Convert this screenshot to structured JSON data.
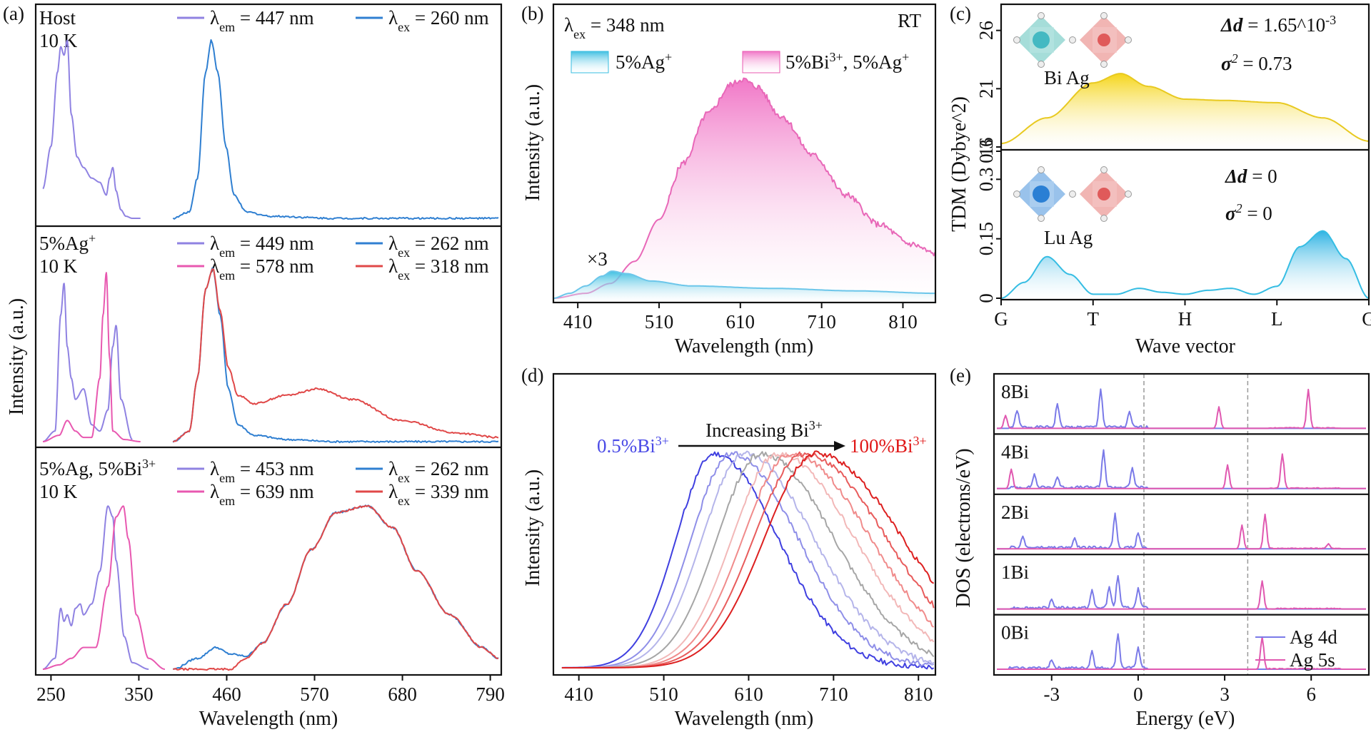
{
  "colors": {
    "purple": "#8f82e2",
    "blue": "#2f7fd1",
    "pink": "#e858b0",
    "red": "#e04848",
    "yellow": "#f2d328",
    "cyan": "#37bde0",
    "lightblue": "#7fd0ef",
    "gray": "#a6a6a6"
  },
  "panels": {
    "a": {
      "label": "(a)",
      "ylabel": "Intensity (a.u.)",
      "xlabel": "Wavelength (nm)",
      "xticks": [
        "250",
        "350",
        "460",
        "570",
        "680",
        "790"
      ],
      "sub": [
        {
          "name": "Host",
          "temp": "10 K",
          "legend": [
            {
              "sym": "λ",
              "sub": "em",
              "text": " = 447 nm",
              "color": "#8f82e2"
            },
            {
              "sym": "λ",
              "sub": "ex",
              "text": " = 260 nm",
              "color": "#2f7fd1"
            }
          ]
        },
        {
          "name": "5%Ag",
          "name_sup": "+",
          "temp": "10 K",
          "legend": [
            {
              "sym": "λ",
              "sub": "em",
              "text": " = 449 nm",
              "color": "#8f82e2"
            },
            {
              "sym": "λ",
              "sub": "ex",
              "text": " = 262 nm",
              "color": "#2f7fd1"
            },
            {
              "sym": "λ",
              "sub": "em",
              "text": " = 578 nm",
              "color": "#e858b0"
            },
            {
              "sym": "λ",
              "sub": "ex",
              "text": " = 318 nm",
              "color": "#e04848"
            }
          ]
        },
        {
          "name": "5%Ag, 5%Bi",
          "name_sup": "3+",
          "temp": "10 K",
          "legend": [
            {
              "sym": "λ",
              "sub": "em",
              "text": " = 453 nm",
              "color": "#8f82e2"
            },
            {
              "sym": "λ",
              "sub": "ex",
              "text": " = 262 nm",
              "color": "#2f7fd1"
            },
            {
              "sym": "λ",
              "sub": "em",
              "text": " = 639 nm",
              "color": "#e858b0"
            },
            {
              "sym": "λ",
              "sub": "ex",
              "text": " = 339 nm",
              "color": "#e04848"
            }
          ]
        }
      ]
    },
    "b": {
      "label": "(b)",
      "ylabel": "Intensity (a.u.)",
      "xlabel": "Wavelength (nm)",
      "xticks": [
        "410",
        "510",
        "610",
        "710",
        "810"
      ],
      "excitation": "λ",
      "excitation_sub": "ex",
      "excitation_text": " = 348 nm",
      "rt": "RT",
      "legend1": "5%Ag",
      "legend1_sup": "+",
      "legend2a": "5%Bi",
      "legend2a_sup": "3+",
      "legend2b": ", 5%Ag",
      "legend2b_sup": "+",
      "multiplier": "×3"
    },
    "c": {
      "label": "(c)",
      "ylabel": "TDM (Dybye^2)",
      "xlabel": "Wave vector",
      "xticks": [
        "G",
        "T",
        "H",
        "L",
        "G"
      ],
      "top_yticks": [
        "26",
        "21",
        "16"
      ],
      "bottom_yticks": [
        "0.3",
        "0.15",
        "0",
        "0.3"
      ],
      "top_atoms": "Bi Ag",
      "bottom_atoms": "Lu Ag",
      "top_dd_label": "Δd",
      "top_dd_value": " = 1.65^10",
      "top_dd_sup": "-3",
      "top_sigma": "σ",
      "top_sigma_sup": "2",
      "top_sigma_value": " = 0.73",
      "bottom_dd_label": "Δd",
      "bottom_dd_value": " = 0",
      "bottom_sigma": "σ",
      "bottom_sigma_sup": "2",
      "bottom_sigma_value": " = 0"
    },
    "d": {
      "label": "(d)",
      "ylabel": "Intensity (a.u.)",
      "xlabel": "Wavelength (nm)",
      "xticks": [
        "410",
        "510",
        "610",
        "710",
        "810"
      ],
      "arrow_label": "Increasing Bi",
      "arrow_label_sup": "3+",
      "left_label": "0.5%Bi",
      "left_label_sup": "3+",
      "right_label": "100%Bi",
      "right_label_sup": "3+"
    },
    "e": {
      "label": "(e)",
      "ylabel": "DOS (electrons/eV)",
      "xlabel": "Energy (eV)",
      "xticks": [
        "-3",
        "0",
        "3",
        "6"
      ],
      "rows": [
        "8Bi",
        "4Bi",
        "2Bi",
        "1Bi",
        "0Bi"
      ],
      "legend": [
        "Ag 4d",
        "Ag 5s"
      ]
    }
  },
  "chart_data": [
    {
      "panel": "a-top",
      "type": "line",
      "title": "Host 10 K",
      "xlim": [
        240,
        800
      ],
      "series": [
        {
          "name": "λem = 447 nm",
          "color": "#8f82e2",
          "x": [
            240,
            250,
            258,
            262,
            266,
            270,
            275,
            282,
            290,
            300,
            310,
            318,
            322,
            326,
            330,
            336,
            342,
            350,
            360
          ],
          "y": [
            0.15,
            0.35,
            0.7,
            0.82,
            0.78,
            0.85,
            0.5,
            0.3,
            0.25,
            0.2,
            0.18,
            0.12,
            0.2,
            0.25,
            0.14,
            0.05,
            0.02,
            0.01,
            0.01
          ]
        },
        {
          "name": "λex = 260 nm",
          "color": "#2f7fd1",
          "x": [
            400,
            420,
            430,
            440,
            447,
            455,
            465,
            475,
            490,
            520,
            600,
            800
          ],
          "y": [
            0.01,
            0.04,
            0.2,
            0.7,
            0.85,
            0.7,
            0.35,
            0.12,
            0.04,
            0.02,
            0.01,
            0.01
          ]
        }
      ]
    },
    {
      "panel": "a-middle",
      "type": "line",
      "title": "5%Ag+ 10 K",
      "xlim": [
        240,
        800
      ],
      "series": [
        {
          "name": "λem = 449 nm",
          "color": "#8f82e2",
          "x": [
            240,
            255,
            262,
            266,
            270,
            275,
            280,
            290,
            300,
            310,
            320,
            326,
            330,
            336,
            350
          ],
          "y": [
            0.0,
            0.05,
            0.6,
            0.75,
            0.45,
            0.3,
            0.2,
            0.25,
            0.08,
            0.05,
            0.15,
            0.45,
            0.55,
            0.2,
            0.01
          ]
        },
        {
          "name": "λem = 578 nm",
          "color": "#e858b0",
          "x": [
            240,
            260,
            270,
            280,
            290,
            300,
            310,
            314,
            318,
            322,
            326,
            340,
            360
          ],
          "y": [
            0.0,
            0.03,
            0.1,
            0.05,
            0.02,
            0.02,
            0.3,
            0.6,
            0.8,
            0.4,
            0.05,
            0.01,
            0.0
          ]
        },
        {
          "name": "λex = 262 nm",
          "color": "#2f7fd1",
          "x": [
            400,
            420,
            430,
            440,
            449,
            458,
            468,
            480,
            500,
            540,
            600,
            800
          ],
          "y": [
            0.0,
            0.05,
            0.3,
            0.72,
            0.82,
            0.6,
            0.25,
            0.08,
            0.03,
            0.01,
            0.0,
            0.0
          ]
        },
        {
          "name": "λex = 318 nm",
          "color": "#e04848",
          "x": [
            400,
            420,
            430,
            440,
            449,
            458,
            468,
            480,
            500,
            540,
            578,
            620,
            680,
            750,
            800
          ],
          "y": [
            0.0,
            0.05,
            0.3,
            0.72,
            0.82,
            0.62,
            0.35,
            0.22,
            0.18,
            0.22,
            0.25,
            0.2,
            0.1,
            0.04,
            0.02
          ]
        }
      ]
    },
    {
      "panel": "a-bottom",
      "type": "line",
      "title": "5%Ag, 5%Bi3+ 10 K",
      "xlim": [
        240,
        800
      ],
      "series": [
        {
          "name": "λem = 453 nm",
          "color": "#8f82e2",
          "x": [
            240,
            255,
            262,
            266,
            270,
            275,
            280,
            286,
            290,
            300,
            310,
            320,
            326,
            330,
            340,
            350,
            370
          ],
          "y": [
            0.0,
            0.05,
            0.28,
            0.22,
            0.25,
            0.2,
            0.28,
            0.3,
            0.25,
            0.3,
            0.45,
            0.75,
            0.7,
            0.5,
            0.15,
            0.03,
            0.0
          ]
        },
        {
          "name": "λem = 639 nm",
          "color": "#e858b0",
          "x": [
            240,
            260,
            275,
            290,
            305,
            320,
            330,
            339,
            345,
            355,
            370,
            390
          ],
          "y": [
            0.0,
            0.02,
            0.05,
            0.1,
            0.1,
            0.38,
            0.7,
            0.75,
            0.6,
            0.25,
            0.05,
            0.0
          ]
        },
        {
          "name": "λex = 262 nm",
          "color": "#2f7fd1",
          "x": [
            400,
            430,
            453,
            470,
            490,
            510,
            540,
            570,
            600,
            639,
            670,
            700,
            740,
            780,
            800
          ],
          "y": [
            0.0,
            0.05,
            0.1,
            0.07,
            0.06,
            0.12,
            0.3,
            0.55,
            0.72,
            0.75,
            0.65,
            0.45,
            0.25,
            0.1,
            0.05
          ]
        },
        {
          "name": "λex = 339 nm",
          "color": "#e04848",
          "x": [
            400,
            470,
            490,
            510,
            540,
            570,
            600,
            639,
            670,
            700,
            740,
            780,
            800
          ],
          "y": [
            0.0,
            0.0,
            0.05,
            0.12,
            0.3,
            0.55,
            0.72,
            0.75,
            0.65,
            0.45,
            0.25,
            0.1,
            0.05
          ]
        }
      ]
    },
    {
      "panel": "b",
      "type": "area",
      "title": "λex = 348 nm RT",
      "xlim": [
        380,
        850
      ],
      "series": [
        {
          "name": "5%Ag+",
          "color": "#37bde0",
          "x": [
            380,
            400,
            420,
            440,
            452,
            470,
            500,
            550,
            650,
            750,
            850
          ],
          "y": [
            0.0,
            0.02,
            0.05,
            0.09,
            0.11,
            0.1,
            0.07,
            0.05,
            0.04,
            0.03,
            0.02
          ]
        },
        {
          "name": "5%Bi3+, 5%Ag+",
          "color": "#e858b0",
          "x": [
            380,
            420,
            450,
            480,
            510,
            540,
            570,
            600,
            612,
            630,
            660,
            700,
            740,
            780,
            820,
            850
          ],
          "y": [
            0.0,
            0.02,
            0.06,
            0.15,
            0.32,
            0.55,
            0.75,
            0.87,
            0.89,
            0.86,
            0.74,
            0.58,
            0.42,
            0.3,
            0.22,
            0.18
          ]
        }
      ]
    },
    {
      "panel": "c-top",
      "type": "area",
      "ylim": [
        16,
        28
      ],
      "x": [
        "G",
        "T",
        "H",
        "L",
        "G"
      ],
      "series": [
        {
          "name": "Bi Ag",
          "color": "#f2d328",
          "x": [
            0,
            0.5,
            1.0,
            1.3,
            1.6,
            2.0,
            2.4,
            3.0,
            3.5,
            4.0
          ],
          "y": [
            16.3,
            18.5,
            21.5,
            22.3,
            21.2,
            20.1,
            20.0,
            19.8,
            18.5,
            16.5
          ]
        }
      ]
    },
    {
      "panel": "c-bottom",
      "type": "area",
      "ylim": [
        0,
        0.36
      ],
      "x": [
        "G",
        "T",
        "H",
        "L",
        "G"
      ],
      "series": [
        {
          "name": "Lu Ag",
          "color": "#37bde0",
          "x": [
            0,
            0.25,
            0.5,
            0.75,
            1.0,
            1.25,
            1.5,
            1.75,
            2.0,
            2.25,
            2.5,
            2.75,
            3.0,
            3.25,
            3.5,
            3.75,
            4.0
          ],
          "y": [
            0.0,
            0.04,
            0.105,
            0.06,
            0.01,
            0.01,
            0.025,
            0.015,
            0.01,
            0.02,
            0.025,
            0.01,
            0.03,
            0.13,
            0.17,
            0.1,
            0.0
          ]
        }
      ]
    },
    {
      "panel": "d",
      "type": "line",
      "xlim": [
        380,
        830
      ],
      "series": [
        {
          "name": "0.5%Bi3+",
          "color": "#4040e0",
          "peak": 570,
          "width": 78
        },
        {
          "name": "",
          "color": "#8f8fe8",
          "peak": 590,
          "width": 82
        },
        {
          "name": "",
          "color": "#b5b5ea",
          "peak": 605,
          "width": 86
        },
        {
          "name": "",
          "color": "#a6a6a6",
          "peak": 625,
          "width": 90
        },
        {
          "name": "",
          "color": "#f2b8b8",
          "peak": 645,
          "width": 94
        },
        {
          "name": "",
          "color": "#f08b8b",
          "peak": 660,
          "width": 98
        },
        {
          "name": "",
          "color": "#e85c5c",
          "peak": 675,
          "width": 102
        },
        {
          "name": "100%Bi3+",
          "color": "#dd2020",
          "peak": 690,
          "width": 106
        }
      ]
    },
    {
      "panel": "e",
      "type": "line",
      "xlim": [
        -5,
        8
      ],
      "vlines": [
        0.2,
        3.8
      ],
      "rows": [
        {
          "name": "8Bi",
          "ag4d": [
            [
              -4.2,
              0.4
            ],
            [
              -2.8,
              0.55
            ],
            [
              -1.3,
              0.9
            ],
            [
              -0.3,
              0.35
            ]
          ],
          "ag5s": [
            [
              -4.6,
              0.3
            ],
            [
              2.8,
              0.5
            ],
            [
              5.9,
              0.9
            ]
          ]
        },
        {
          "name": "4Bi",
          "ag4d": [
            [
              -3.6,
              0.3
            ],
            [
              -2.8,
              0.25
            ],
            [
              -1.2,
              0.85
            ],
            [
              -0.2,
              0.45
            ]
          ],
          "ag5s": [
            [
              -4.4,
              0.45
            ],
            [
              3.1,
              0.55
            ],
            [
              5.0,
              0.8
            ]
          ]
        },
        {
          "name": "2Bi",
          "ag4d": [
            [
              -4.0,
              0.25
            ],
            [
              -2.2,
              0.2
            ],
            [
              -0.8,
              0.8
            ],
            [
              0.0,
              0.35
            ]
          ],
          "ag5s": [
            [
              3.6,
              0.55
            ],
            [
              4.4,
              0.8
            ],
            [
              6.6,
              0.1
            ]
          ]
        },
        {
          "name": "1Bi",
          "ag4d": [
            [
              -3.0,
              0.2
            ],
            [
              -1.6,
              0.4
            ],
            [
              -1.0,
              0.5
            ],
            [
              -0.7,
              0.75
            ],
            [
              0.0,
              0.45
            ]
          ],
          "ag5s": [
            [
              4.3,
              0.65
            ]
          ]
        },
        {
          "name": "0Bi",
          "ag4d": [
            [
              -3.0,
              0.2
            ],
            [
              -1.6,
              0.4
            ],
            [
              -0.7,
              0.8
            ],
            [
              0.0,
              0.5
            ]
          ],
          "ag5s": [
            [
              4.3,
              0.75
            ]
          ]
        }
      ]
    }
  ]
}
